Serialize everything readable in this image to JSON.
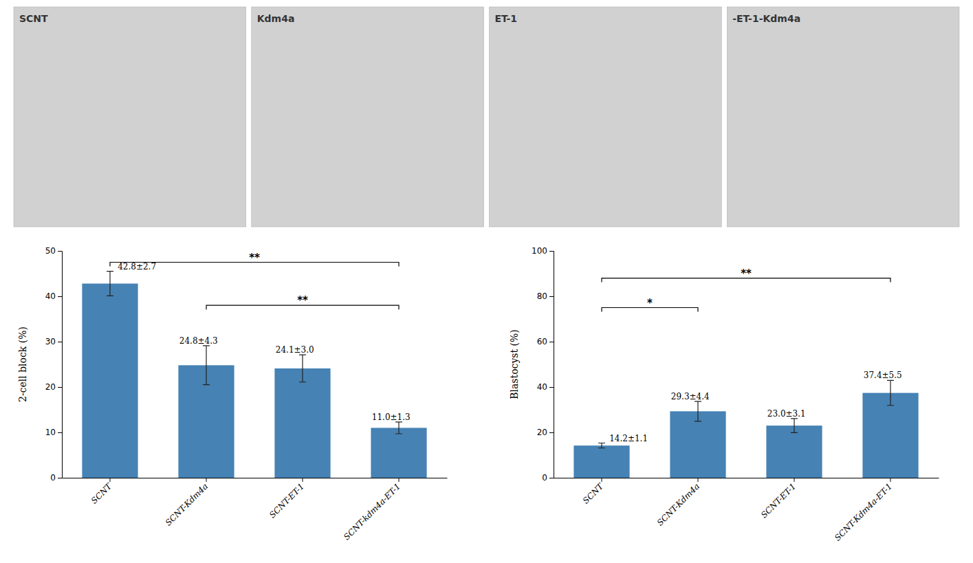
{
  "chart_data": [
    {
      "type": "image",
      "title": "SCNT"
    },
    {
      "type": "image",
      "title": "Kdm4a"
    },
    {
      "type": "image",
      "title": "ET-1"
    },
    {
      "type": "image",
      "title": "-ET-1-Kdm4a"
    },
    {
      "type": "bar",
      "categories": [
        "SCNT",
        "SCNT-Kdm4a",
        "SCNT-ET-1",
        "SCNT-kdm4a-ET-1"
      ],
      "values": [
        42.8,
        24.8,
        24.1,
        11.0
      ],
      "errors": [
        2.7,
        4.3,
        3.0,
        1.3
      ],
      "data_labels": true,
      "value_labels": [
        "42.8±2.7",
        "24.8±4.3",
        "24.1±3.0",
        "11.0±1.3"
      ],
      "ylabel": "2-cell block (%)",
      "ylim": [
        0,
        50
      ],
      "yticks": [
        0,
        10,
        20,
        30,
        40,
        50
      ],
      "brackets": [
        {
          "from": "SCNT",
          "to": "SCNT-kdm4a-ET-1",
          "y": 47.5,
          "label": "**"
        },
        {
          "from": "SCNT-Kdm4a",
          "to": "SCNT-kdm4a-ET-1",
          "y": 38.0,
          "label": "**"
        }
      ]
    },
    {
      "type": "bar",
      "categories": [
        "SCNT",
        "SCNT-Kdm4a",
        "SCNT-ET-1",
        "SCNT-Kdm4a-ET-1"
      ],
      "values": [
        14.2,
        29.3,
        23.0,
        37.4
      ],
      "errors": [
        1.1,
        4.4,
        3.1,
        5.5
      ],
      "data_labels": true,
      "value_labels": [
        "14.2±1.1",
        "29.3±4.4",
        "23.0±3.1",
        "37.4±5.5"
      ],
      "ylabel": "Blastocyst (%)",
      "ylim": [
        0,
        100
      ],
      "yticks": [
        0,
        20,
        40,
        60,
        80,
        100
      ],
      "brackets": [
        {
          "from": "SCNT",
          "to": "SCNT-Kdm4a",
          "y": 75,
          "label": "*"
        },
        {
          "from": "SCNT",
          "to": "SCNT-Kdm4a-ET-1",
          "y": 88,
          "label": "**"
        }
      ]
    }
  ]
}
